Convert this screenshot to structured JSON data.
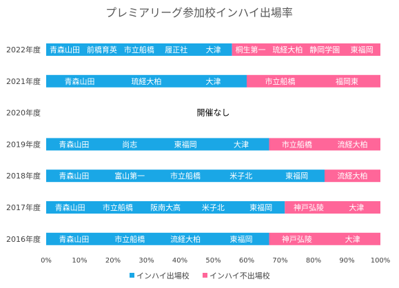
{
  "chart_data": {
    "type": "bar",
    "orientation": "horizontal",
    "stacked": true,
    "percent": true,
    "title": "プレミアリーグ参加校インハイ出場率",
    "categories": [
      "2022年度",
      "2021年度",
      "2020年度",
      "2019年度",
      "2018年度",
      "2017年度",
      "2016年度"
    ],
    "x_ticks": [
      "0%",
      "10%",
      "20%",
      "30%",
      "40%",
      "50%",
      "60%",
      "70%",
      "80%",
      "90%",
      "100%"
    ],
    "xlim": [
      0,
      100
    ],
    "grid": false,
    "legend_position": "bottom",
    "series": [
      {
        "name": "インハイ出場校",
        "color": "#1aa7e6",
        "values": [
          55.6,
          60,
          null,
          66.7,
          83.3,
          71.4,
          66.7
        ],
        "schools": [
          [
            "青森山田",
            "前橋育英",
            "市立船橋",
            "履正社",
            "大津"
          ],
          [
            "青森山田",
            "琉経大柏",
            "大津"
          ],
          [],
          [
            "青森山田",
            "尚志",
            "東福岡",
            "大津"
          ],
          [
            "青森山田",
            "富山第一",
            "市立船橋",
            "米子北",
            "東福岡"
          ],
          [
            "青森山田",
            "市立船橋",
            "阪南大高",
            "米子北",
            "東福岡"
          ],
          [
            "青森山田",
            "市立船橋",
            "流経大柏",
            "東福岡"
          ]
        ]
      },
      {
        "name": "インハイ不出場校",
        "color": "#ff6699",
        "values": [
          44.4,
          40,
          null,
          33.3,
          16.7,
          28.6,
          33.3
        ],
        "schools": [
          [
            "桐生第一",
            "琉経大柏",
            "静岡学園",
            "東福岡"
          ],
          [
            "市立船橋",
            "福岡東"
          ],
          [],
          [
            "市立船橋",
            "流経大柏"
          ],
          [
            "流経大柏"
          ],
          [
            "神戸弘陵",
            "大津"
          ],
          [
            "神戸弘陵",
            "大津"
          ]
        ]
      }
    ],
    "annotations": [
      {
        "category": "2020年度",
        "text": "開催なし"
      }
    ]
  }
}
